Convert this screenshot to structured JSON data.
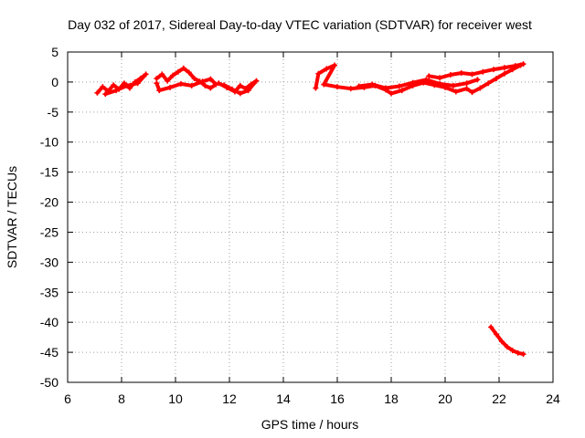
{
  "chart_data": {
    "type": "scatter",
    "title": "Day 032 of 2017, Sidereal Day-to-day VTEC variation (SDTVAR) for receiver west",
    "xlabel": "GPS time / hours",
    "ylabel": "SDTVAR / TECUs",
    "xlim": [
      6,
      24
    ],
    "ylim": [
      -50,
      5
    ],
    "xticks": [
      "6",
      "8",
      "10",
      "12",
      "14",
      "16",
      "18",
      "20",
      "22",
      "24"
    ],
    "yticks": [
      "5",
      "0",
      "-5",
      "-10",
      "-15",
      "-20",
      "-25",
      "-30",
      "-35",
      "-40",
      "-45",
      "-50"
    ],
    "grid": true,
    "color": "#ff0000",
    "series": [
      {
        "points": [
          [
            7.1,
            -1.8
          ],
          [
            7.3,
            -0.8
          ],
          [
            7.5,
            -1.5
          ],
          [
            7.7,
            -0.5
          ],
          [
            7.9,
            -1.2
          ],
          [
            8.1,
            -0.2
          ],
          [
            8.3,
            -1.0
          ],
          [
            8.5,
            0.0
          ],
          [
            8.7,
            0.6
          ],
          [
            8.9,
            1.3
          ],
          [
            8.6,
            -0.2
          ],
          [
            8.2,
            -0.6
          ],
          [
            7.8,
            -1.4
          ],
          [
            7.4,
            -2.0
          ]
        ]
      },
      {
        "points": [
          [
            9.3,
            0.6
          ],
          [
            9.5,
            1.3
          ],
          [
            9.7,
            0.2
          ],
          [
            9.9,
            1.1
          ],
          [
            10.1,
            1.7
          ],
          [
            10.3,
            2.3
          ],
          [
            10.5,
            1.6
          ],
          [
            10.7,
            0.6
          ],
          [
            10.9,
            0.1
          ],
          [
            11.1,
            -0.6
          ],
          [
            11.3,
            -1.0
          ],
          [
            11.5,
            -0.4
          ],
          [
            11.3,
            0.5
          ],
          [
            11.0,
            0.1
          ],
          [
            10.6,
            -0.6
          ],
          [
            10.2,
            -0.3
          ],
          [
            9.8,
            -0.9
          ],
          [
            9.4,
            -1.4
          ],
          [
            9.3,
            -0.2
          ]
        ]
      },
      {
        "points": [
          [
            11.6,
            -0.2
          ],
          [
            11.9,
            -0.9
          ],
          [
            12.2,
            -1.6
          ],
          [
            12.4,
            -0.6
          ],
          [
            12.6,
            -1.1
          ],
          [
            12.8,
            -0.4
          ],
          [
            13.0,
            0.2
          ],
          [
            12.7,
            -1.4
          ],
          [
            12.4,
            -1.9
          ],
          [
            12.1,
            -1.2
          ],
          [
            11.8,
            -0.5
          ]
        ]
      },
      {
        "points": [
          [
            15.2,
            -1.0
          ],
          [
            15.3,
            1.4
          ],
          [
            15.6,
            2.2
          ],
          [
            15.9,
            2.8
          ],
          [
            15.5,
            -0.4
          ],
          [
            16.0,
            -0.8
          ],
          [
            16.5,
            -1.1
          ],
          [
            17.0,
            -0.9
          ],
          [
            17.4,
            -0.6
          ],
          [
            17.8,
            -1.3
          ],
          [
            18.0,
            -1.9
          ],
          [
            18.4,
            -1.4
          ],
          [
            18.8,
            -0.6
          ],
          [
            19.2,
            -0.1
          ],
          [
            19.6,
            -0.5
          ],
          [
            20.0,
            -0.9
          ],
          [
            20.4,
            -1.6
          ],
          [
            20.8,
            -1.1
          ],
          [
            21.0,
            -1.7
          ],
          [
            21.3,
            -1.0
          ],
          [
            21.6,
            -0.2
          ],
          [
            21.9,
            0.6
          ],
          [
            22.2,
            1.4
          ],
          [
            22.5,
            2.1
          ],
          [
            22.8,
            2.8
          ]
        ]
      },
      {
        "points": [
          [
            19.4,
            1.0
          ],
          [
            19.8,
            0.7
          ],
          [
            20.2,
            1.2
          ],
          [
            20.6,
            1.5
          ],
          [
            21.0,
            1.3
          ],
          [
            21.4,
            1.7
          ],
          [
            21.8,
            2.1
          ],
          [
            22.2,
            2.4
          ],
          [
            22.6,
            2.7
          ],
          [
            22.9,
            3.0
          ]
        ]
      },
      {
        "points": [
          [
            16.8,
            -0.7
          ],
          [
            17.3,
            -0.4
          ],
          [
            17.8,
            -1.0
          ],
          [
            18.3,
            -0.7
          ],
          [
            18.8,
            -0.1
          ],
          [
            19.3,
            0.4
          ],
          [
            19.8,
            -0.3
          ],
          [
            20.3,
            -0.6
          ],
          [
            20.8,
            -0.2
          ],
          [
            21.2,
            0.4
          ]
        ]
      },
      {
        "points": [
          [
            21.7,
            -40.8
          ],
          [
            21.9,
            -42.0
          ],
          [
            22.1,
            -43.2
          ],
          [
            22.3,
            -44.1
          ],
          [
            22.5,
            -44.7
          ],
          [
            22.7,
            -45.1
          ],
          [
            22.9,
            -45.3
          ]
        ]
      }
    ]
  }
}
